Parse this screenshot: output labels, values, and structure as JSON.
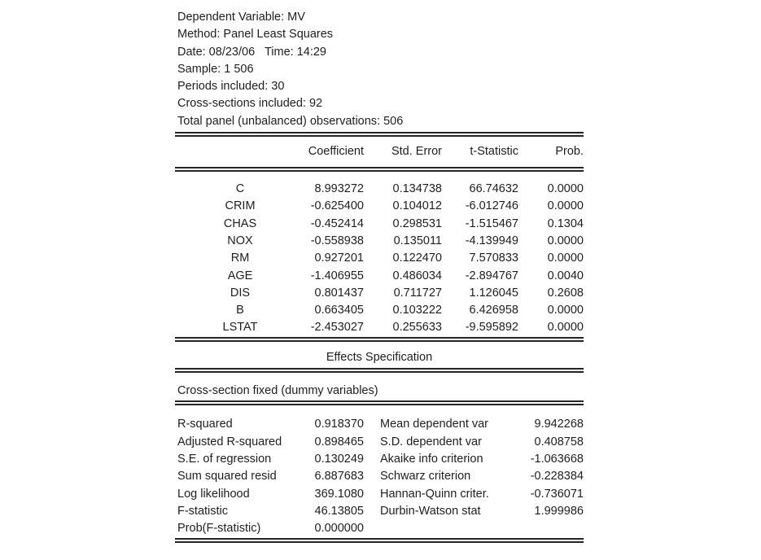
{
  "report": {
    "header_lines": [
      "Dependent Variable: MV",
      "Method: Panel Least Squares",
      "Date: 08/23/06   Time: 14:29",
      "Sample: 1 506",
      "Periods included: 30",
      "Cross-sections included: 92",
      "Total panel (unbalanced) observations: 506"
    ],
    "coef_table": {
      "columns": {
        "coefficient": "Coefficient",
        "std_error": "Std. Error",
        "t_statistic": "t-Statistic",
        "prob": "Prob."
      },
      "rows": [
        {
          "variable": "C",
          "coefficient": "8.993272",
          "std_error": "0.134738",
          "t_statistic": "66.74632",
          "prob": "0.0000"
        },
        {
          "variable": "CRIM",
          "coefficient": "-0.625400",
          "std_error": "0.104012",
          "t_statistic": "-6.012746",
          "prob": "0.0000"
        },
        {
          "variable": "CHAS",
          "coefficient": "-0.452414",
          "std_error": "0.298531",
          "t_statistic": "-1.515467",
          "prob": "0.1304"
        },
        {
          "variable": "NOX",
          "coefficient": "-0.558938",
          "std_error": "0.135011",
          "t_statistic": "-4.139949",
          "prob": "0.0000"
        },
        {
          "variable": "RM",
          "coefficient": "0.927201",
          "std_error": "0.122470",
          "t_statistic": "7.570833",
          "prob": "0.0000"
        },
        {
          "variable": "AGE",
          "coefficient": "-1.406955",
          "std_error": "0.486034",
          "t_statistic": "-2.894767",
          "prob": "0.0040"
        },
        {
          "variable": "DIS",
          "coefficient": "0.801437",
          "std_error": "0.711727",
          "t_statistic": "1.126045",
          "prob": "0.2608"
        },
        {
          "variable": "B",
          "coefficient": "0.663405",
          "std_error": "0.103222",
          "t_statistic": "6.426958",
          "prob": "0.0000"
        },
        {
          "variable": "LSTAT",
          "coefficient": "-2.453027",
          "std_error": "0.255633",
          "t_statistic": "-9.595892",
          "prob": "0.0000"
        }
      ]
    },
    "effects": {
      "title": "Effects Specification",
      "detail": "Cross-section fixed (dummy variables)"
    },
    "summary_rows": [
      {
        "left_label": "R-squared",
        "left_value": "0.918370",
        "right_label": "Mean dependent var",
        "right_value": "9.942268"
      },
      {
        "left_label": "Adjusted R-squared",
        "left_value": "0.898465",
        "right_label": "S.D. dependent var",
        "right_value": "0.408758"
      },
      {
        "left_label": "S.E. of regression",
        "left_value": "0.130249",
        "right_label": "Akaike info criterion",
        "right_value": "-1.063668"
      },
      {
        "left_label": "Sum squared resid",
        "left_value": "6.887683",
        "right_label": "Schwarz criterion",
        "right_value": "-0.228384"
      },
      {
        "left_label": "Log likelihood",
        "left_value": "369.1080",
        "right_label": "Hannan-Quinn criter.",
        "right_value": "-0.736071"
      },
      {
        "left_label": "F-statistic",
        "left_value": "46.13805",
        "right_label": "Durbin-Watson stat",
        "right_value": "1.999986"
      },
      {
        "left_label": "Prob(F-statistic)",
        "left_value": "0.000000",
        "right_label": "",
        "right_value": ""
      }
    ],
    "colors": {
      "text": "#1e1e1e",
      "rule": "#242424",
      "background": "#ffffff"
    }
  }
}
